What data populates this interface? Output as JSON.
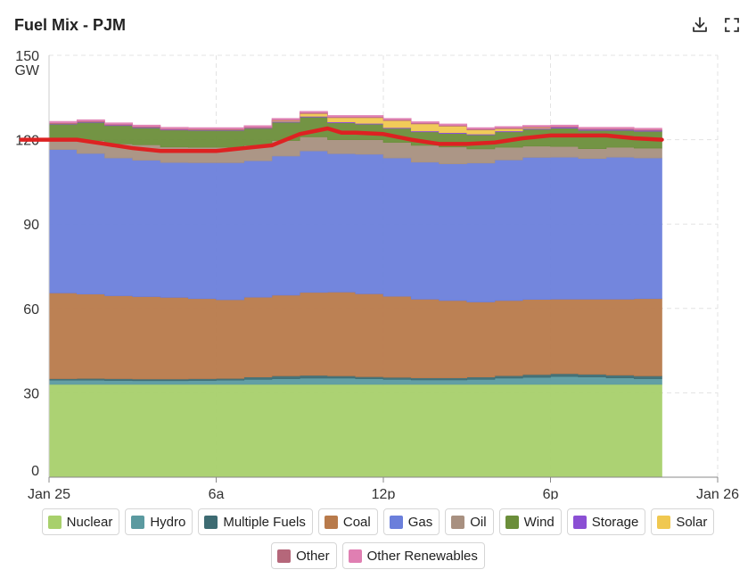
{
  "header": {
    "title": "Fuel Mix - PJM"
  },
  "toolbar": {
    "download_icon": "download-icon",
    "fullscreen_icon": "fullscreen-icon"
  },
  "chart_data": {
    "type": "area",
    "stacked": true,
    "ylabel_unit": "GW",
    "ylim": [
      0,
      150
    ],
    "yticks": [
      "0",
      "30",
      "60",
      "90",
      "120",
      "150"
    ],
    "ytick_values": [
      0,
      30,
      60,
      90,
      120,
      150
    ],
    "xlim_hours": [
      0,
      24
    ],
    "xticks": [
      {
        "hour": 0,
        "label": "Jan 25"
      },
      {
        "hour": 6,
        "label": "6a"
      },
      {
        "hour": 12,
        "label": "12p"
      },
      {
        "hour": 18,
        "label": "6p"
      },
      {
        "hour": 24,
        "label": "Jan 26"
      }
    ],
    "x_hours": [
      0,
      1,
      2,
      3,
      4,
      5,
      6,
      7,
      8,
      9,
      10,
      11,
      12,
      13,
      14,
      15,
      16,
      17,
      18,
      19,
      20,
      21
    ],
    "series": [
      {
        "name": "Nuclear",
        "color": "#a8d06c",
        "values": [
          33,
          33,
          33,
          33,
          33,
          33,
          33,
          33,
          33,
          33,
          33,
          33,
          33,
          33,
          33,
          33,
          33,
          33,
          33,
          33,
          33,
          33
        ]
      },
      {
        "name": "Hydro",
        "color": "#5b9aa0",
        "values": [
          1.5,
          1.5,
          1.4,
          1.3,
          1.3,
          1.4,
          1.5,
          1.8,
          2.0,
          2.2,
          2.2,
          2.0,
          1.8,
          1.6,
          1.6,
          1.8,
          2.2,
          2.5,
          2.8,
          2.6,
          2.3,
          2.0
        ]
      },
      {
        "name": "Multiple Fuels",
        "color": "#3d6b72",
        "values": [
          0.5,
          0.6,
          0.6,
          0.6,
          0.6,
          0.6,
          0.6,
          0.8,
          1.0,
          1.0,
          0.8,
          0.7,
          0.7,
          0.7,
          0.7,
          0.8,
          0.9,
          1.0,
          1.0,
          1.0,
          1.0,
          1.0
        ]
      },
      {
        "name": "Coal",
        "color": "#b87a4b",
        "values": [
          30.5,
          30.0,
          29.5,
          29.3,
          29.0,
          28.5,
          28.0,
          28.4,
          28.7,
          29.5,
          29.8,
          29.5,
          28.8,
          28.0,
          27.5,
          26.7,
          26.7,
          26.7,
          26.5,
          26.7,
          27.0,
          27.5
        ]
      },
      {
        "name": "Gas",
        "color": "#6b7fdb",
        "values": [
          51,
          50,
          49,
          48.5,
          48,
          48.3,
          48.7,
          48.5,
          49.5,
          50.3,
          49.2,
          49.6,
          49.2,
          48.7,
          48.6,
          49.4,
          50,
          50.5,
          50.5,
          50,
          50.5,
          50
        ]
      },
      {
        "name": "Oil",
        "color": "#a89080",
        "values": [
          3.5,
          4.5,
          5.0,
          5.5,
          5.5,
          5.5,
          5.5,
          5.5,
          5.5,
          5.0,
          5.0,
          5.2,
          5.5,
          6.0,
          6.0,
          5.0,
          4.5,
          4.0,
          3.8,
          3.5,
          3.5,
          3.5
        ]
      },
      {
        "name": "Wind",
        "color": "#6b8e3a",
        "values": [
          5.5,
          6.5,
          6.5,
          6.0,
          6.0,
          6.0,
          6.0,
          6.0,
          6.5,
          7.0,
          6.0,
          5.5,
          5.0,
          4.8,
          4.8,
          5.0,
          5.5,
          6.0,
          6.5,
          6.5,
          6.0,
          6.0
        ]
      },
      {
        "name": "Storage",
        "color": "#8b4fd4",
        "values": [
          0.2,
          0.2,
          0.2,
          0.2,
          0.2,
          0.2,
          0.2,
          0.2,
          0.3,
          0.3,
          0.3,
          0.3,
          0.3,
          0.3,
          0.3,
          0.3,
          0.3,
          0.3,
          0.3,
          0.3,
          0.3,
          0.3
        ]
      },
      {
        "name": "Solar",
        "color": "#f0c850",
        "values": [
          0,
          0,
          0,
          0,
          0,
          0,
          0,
          0,
          0.3,
          1.0,
          1.5,
          2.0,
          2.5,
          2.5,
          2.3,
          1.5,
          0.8,
          0.3,
          0,
          0,
          0,
          0
        ]
      },
      {
        "name": "Other",
        "color": "#b5677a",
        "values": [
          0.3,
          0.3,
          0.3,
          0.3,
          0.3,
          0.3,
          0.3,
          0.3,
          0.3,
          0.3,
          0.3,
          0.3,
          0.3,
          0.3,
          0.3,
          0.3,
          0.3,
          0.3,
          0.3,
          0.3,
          0.3,
          0.3
        ]
      },
      {
        "name": "Other Renewables",
        "color": "#e07fb2",
        "values": [
          0.5,
          0.5,
          0.5,
          0.5,
          0.5,
          0.5,
          0.5,
          0.5,
          0.5,
          0.5,
          0.5,
          0.5,
          0.5,
          0.5,
          0.5,
          0.5,
          0.5,
          0.5,
          0.5,
          0.5,
          0.5,
          0.5
        ]
      }
    ],
    "load_line": {
      "color": "#dd2222",
      "x_hours": [
        -1,
        0,
        1,
        2,
        3,
        4,
        5,
        6,
        7,
        8,
        9,
        10,
        10.5,
        11,
        12,
        13,
        14,
        15,
        16,
        17,
        18,
        19,
        20,
        21,
        22
      ],
      "values": [
        120,
        120,
        120,
        118.5,
        117,
        116,
        116,
        116,
        117,
        118,
        122,
        124,
        122.5,
        122.5,
        122,
        120,
        118.5,
        118.5,
        119,
        120.5,
        121.5,
        121.5,
        121.5,
        120.5,
        120
      ]
    },
    "legend": [
      "Nuclear",
      "Hydro",
      "Multiple Fuels",
      "Coal",
      "Gas",
      "Oil",
      "Wind",
      "Storage",
      "Solar",
      "Other",
      "Other Renewables"
    ]
  }
}
